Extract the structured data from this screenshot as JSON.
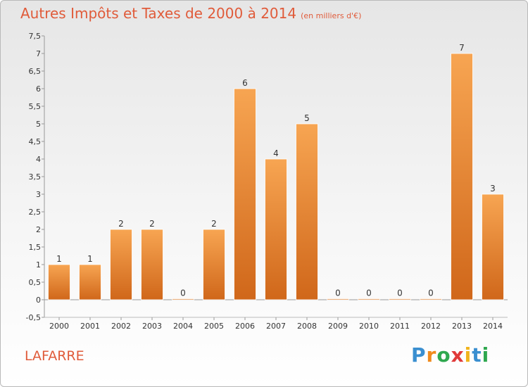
{
  "title": "Autres Impôts et Taxes de 2000 à 2014",
  "title_unit": "(en milliers d'€)",
  "commune": "LAFARRE",
  "logo": {
    "letters": [
      "P",
      "r",
      "o",
      "x",
      "i",
      "t",
      "i"
    ],
    "colors": [
      "#3a8fd0",
      "#f08a1c",
      "#2fa84f",
      "#e03a3a",
      "#f0b41c",
      "#3a8fd0",
      "#2fa84f"
    ]
  },
  "chart_data": {
    "type": "bar",
    "categories": [
      "2000",
      "2001",
      "2002",
      "2003",
      "2004",
      "2005",
      "2006",
      "2007",
      "2008",
      "2009",
      "2010",
      "2011",
      "2012",
      "2013",
      "2014"
    ],
    "values": [
      1,
      1,
      2,
      2,
      0,
      2,
      6,
      4,
      5,
      0,
      0,
      0,
      0,
      7,
      3
    ],
    "title": "Autres Impôts et Taxes de 2000 à 2014",
    "ylim": [
      -0.5,
      7.5
    ],
    "yticks": [
      "-0,5",
      "0",
      "0,5",
      "1",
      "1,5",
      "2",
      "2,5",
      "3",
      "3,5",
      "4",
      "4,5",
      "5",
      "5,5",
      "6",
      "6,5",
      "7",
      "7,5"
    ],
    "ytick_values": [
      -0.5,
      0,
      0.5,
      1,
      1.5,
      2,
      2.5,
      3,
      3.5,
      4,
      4.5,
      5,
      5.5,
      6,
      6.5,
      7,
      7.5
    ],
    "grid": false,
    "bar_color": "#f08a2c"
  }
}
